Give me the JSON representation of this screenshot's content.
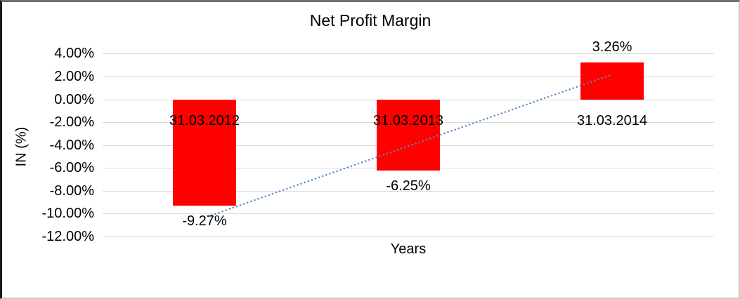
{
  "chart_data": {
    "type": "bar",
    "title": "Net Profit Margin",
    "xlabel": "Years",
    "ylabel": "IN (%)",
    "categories": [
      "31.03.2012",
      "31.03.2013",
      "31.03.2014"
    ],
    "series": [
      {
        "name": "Net Profit Margin",
        "values": [
          -9.27,
          -6.25,
          3.26
        ]
      }
    ],
    "data_labels": [
      "-9.27%",
      "-6.25%",
      "3.26%"
    ],
    "y_ticks": [
      "4.00%",
      "2.00%",
      "0.00%",
      "-2.00%",
      "-4.00%",
      "-6.00%",
      "-8.00%",
      "-10.00%",
      "-12.00%"
    ],
    "ylim": [
      -12,
      4
    ],
    "grid": true,
    "legend": false,
    "bar_color": "#ff0000",
    "gridline_color": "#d9d9d9",
    "text_color": "#000000",
    "trendline": {
      "type": "linear",
      "style": "dotted",
      "color": "#5588c7"
    }
  }
}
